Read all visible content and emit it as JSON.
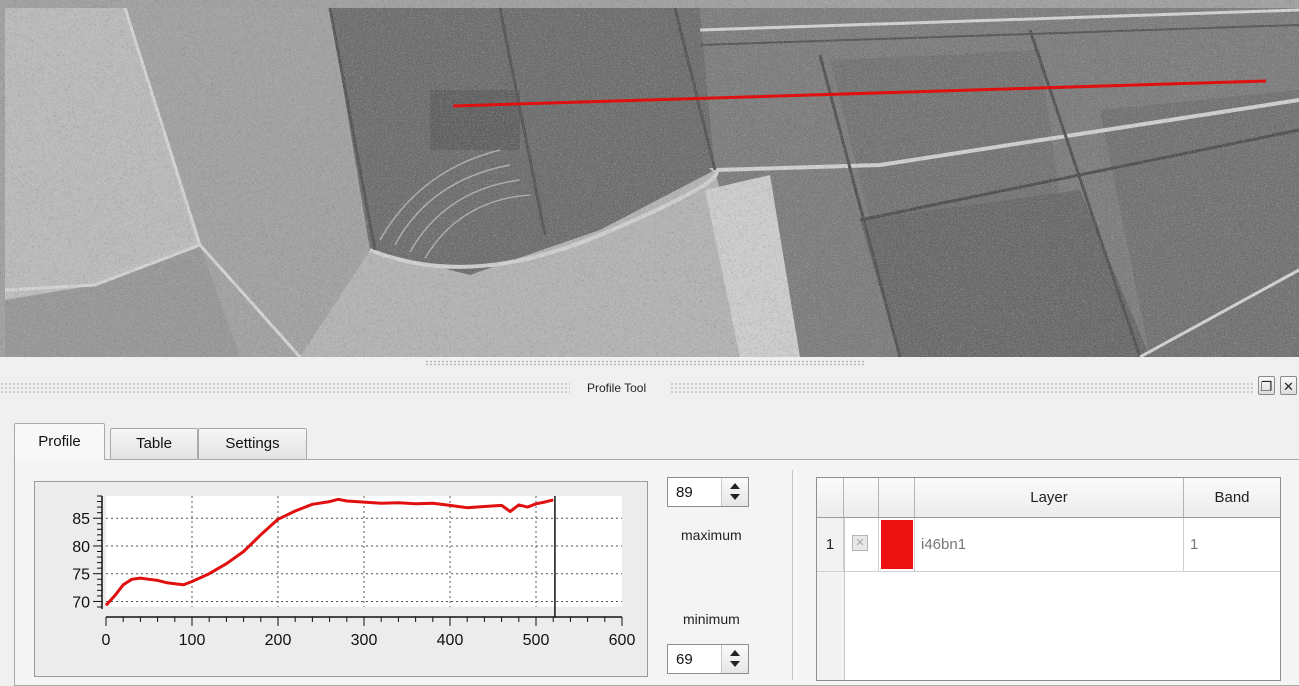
{
  "dock": {
    "title": "Profile Tool"
  },
  "tabs": [
    {
      "label": "Profile",
      "active": true
    },
    {
      "label": "Table",
      "active": false
    },
    {
      "label": "Settings",
      "active": false
    }
  ],
  "profile_controls": {
    "max_value": "89",
    "max_label": "maximum",
    "min_label": "minimum",
    "min_value": "69"
  },
  "layers_table": {
    "columns": [
      "",
      "",
      "",
      "Layer",
      "Band"
    ],
    "rows": [
      {
        "index": "1",
        "checked": false,
        "color": "#ee1111",
        "layer": "i46bn1",
        "band": "1"
      }
    ]
  },
  "colors": {
    "profile_line": "#e01010",
    "accent_red": "#ee1111"
  },
  "chart_data": {
    "type": "line",
    "title": "",
    "xlabel": "",
    "ylabel": "",
    "xlim": [
      0,
      600
    ],
    "ylim": [
      69,
      89
    ],
    "x_ticks": [
      0,
      100,
      200,
      300,
      400,
      500,
      600
    ],
    "y_ticks": [
      70,
      75,
      80,
      85
    ],
    "grid": true,
    "cursor_x": 522,
    "series": [
      {
        "color": "#e01010",
        "x": [
          0,
          10,
          20,
          30,
          40,
          50,
          60,
          70,
          80,
          90,
          100,
          120,
          140,
          160,
          180,
          200,
          220,
          240,
          260,
          270,
          280,
          300,
          320,
          340,
          360,
          380,
          400,
          420,
          440,
          460,
          470,
          480,
          490,
          500,
          510,
          520
        ],
        "y": [
          69.3,
          71.0,
          73.0,
          74.0,
          74.2,
          74.0,
          73.8,
          73.4,
          73.2,
          73.0,
          73.6,
          75.0,
          76.8,
          79.0,
          82.0,
          84.8,
          86.3,
          87.5,
          88.0,
          88.4,
          88.1,
          87.9,
          87.7,
          87.8,
          87.6,
          87.7,
          87.3,
          86.9,
          87.1,
          87.3,
          86.2,
          87.4,
          87.0,
          87.6,
          87.9,
          88.3
        ]
      }
    ]
  }
}
